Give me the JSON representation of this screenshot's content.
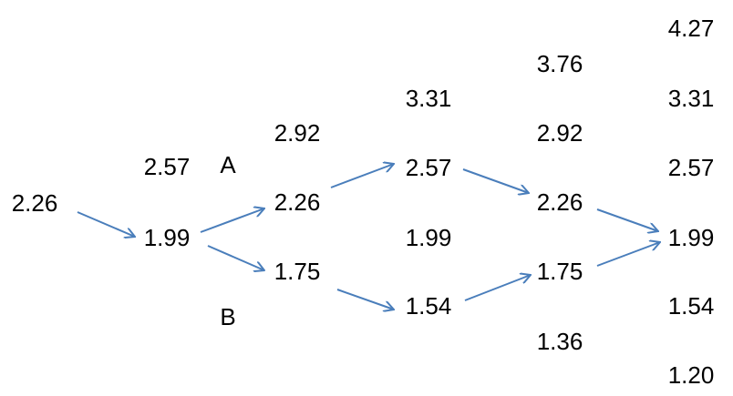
{
  "columns": [
    [
      "2.26"
    ],
    [
      "2.57",
      "1.99"
    ],
    [
      "2.92",
      "2.26",
      "1.75"
    ],
    [
      "3.31",
      "2.57",
      "1.99",
      "1.54"
    ],
    [
      "3.76",
      "2.92",
      "2.26",
      "1.75",
      "1.36"
    ],
    [
      "4.27",
      "3.31",
      "2.57",
      "1.99",
      "1.54",
      "1.20"
    ]
  ],
  "markers": [
    "A",
    "B"
  ]
}
